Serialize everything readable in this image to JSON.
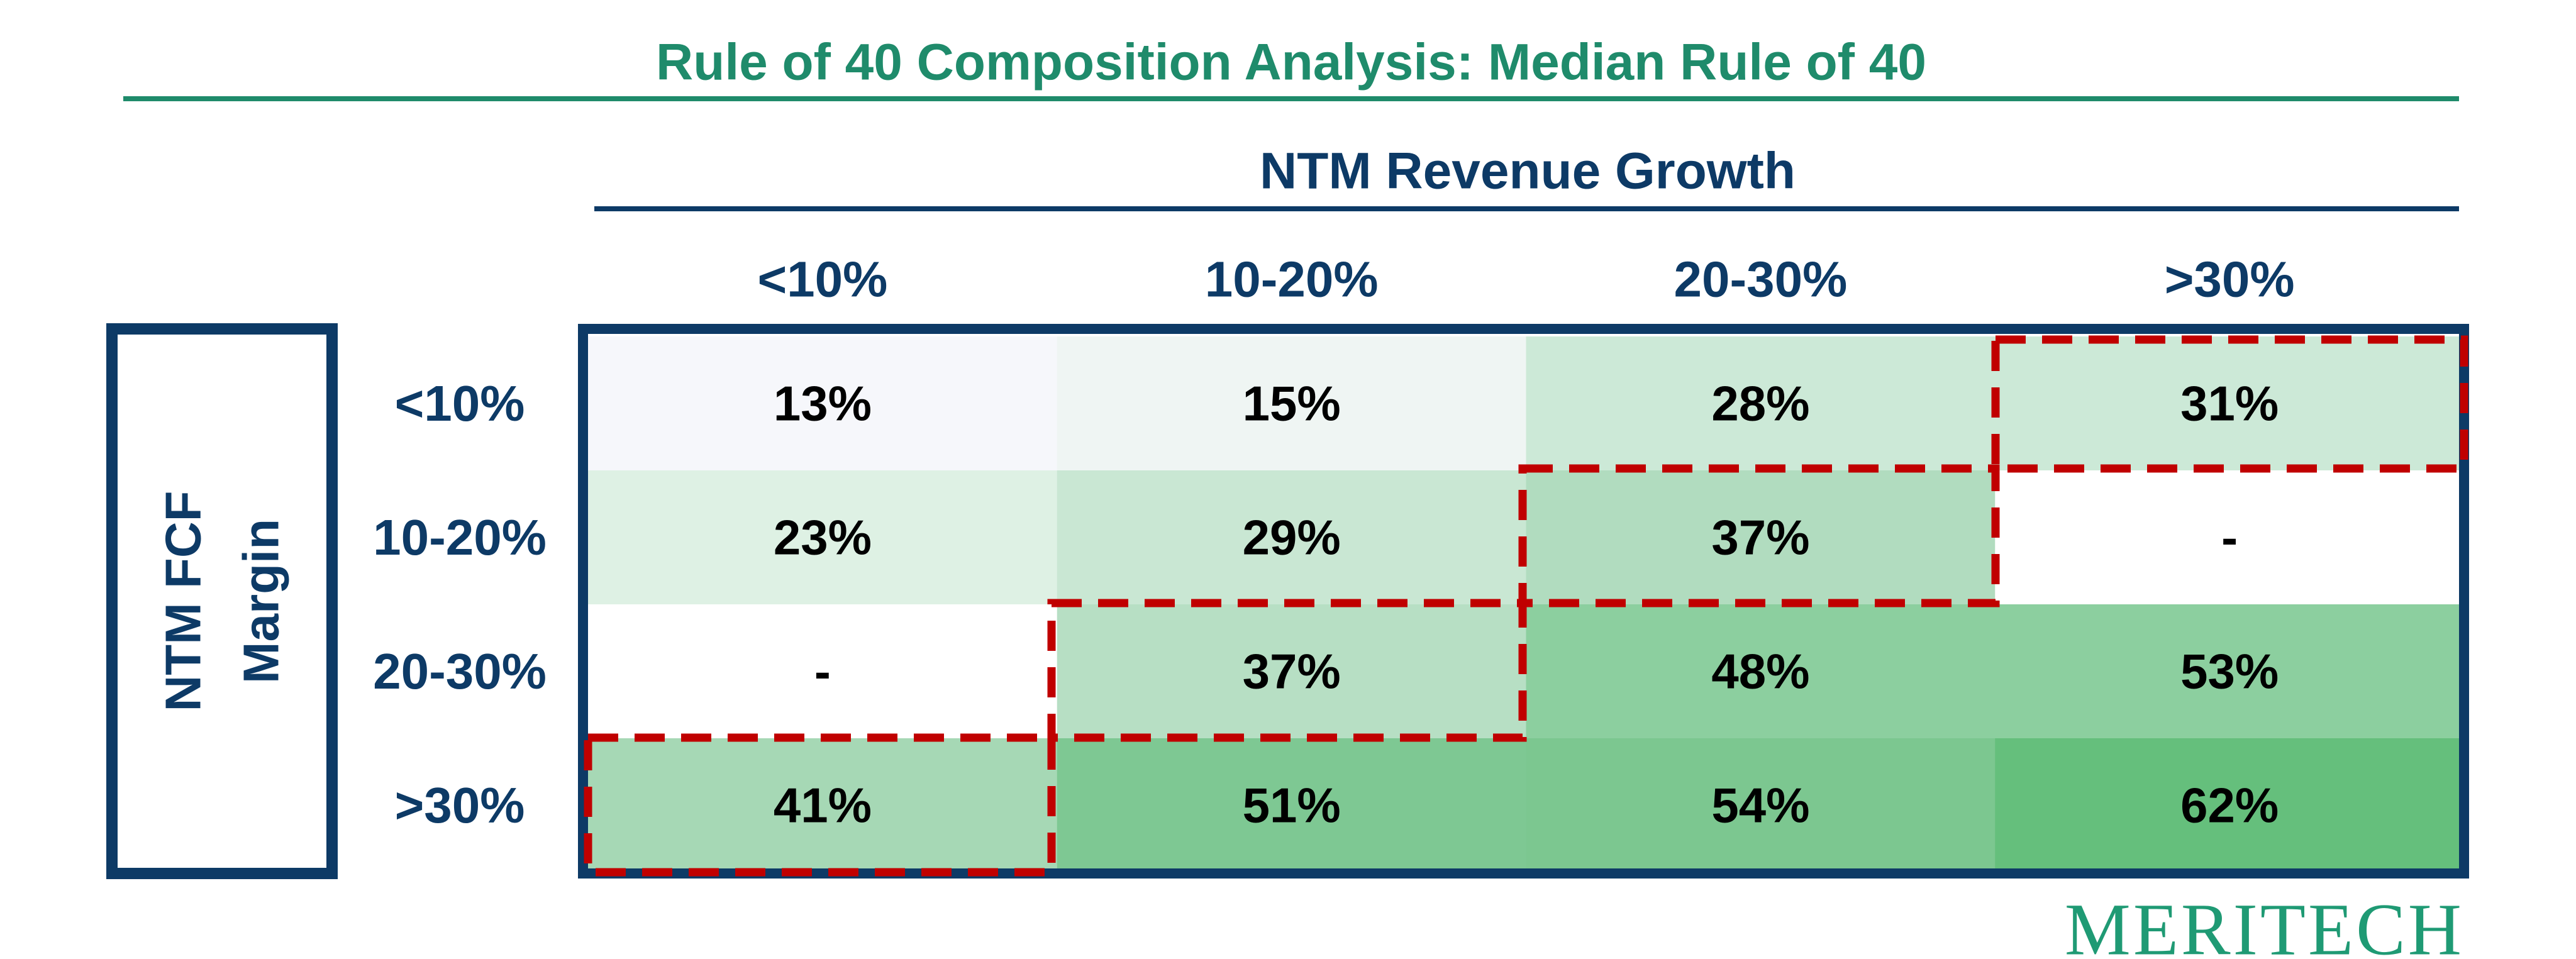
{
  "title": "Rule of 40 Composition Analysis: Median Rule of 40",
  "column_group": "NTM Revenue Growth",
  "row_group": [
    "NTM FCF",
    "Margin"
  ],
  "columns": [
    "<10%",
    "10-20%",
    "20-30%",
    ">30%"
  ],
  "rows": [
    {
      "label": "<10%",
      "cells": [
        "13%",
        "15%",
        "28%",
        "31%"
      ],
      "colors": [
        "#f6f7fb",
        "#eff5f3",
        "#cce9d7",
        "#cce9d7"
      ]
    },
    {
      "label": "10-20%",
      "cells": [
        "23%",
        "29%",
        "37%",
        "-"
      ],
      "colors": [
        "#def1e4",
        "#c9e7d3",
        "#b1dcbf",
        "#ffffff"
      ]
    },
    {
      "label": "20-30%",
      "cells": [
        "-",
        "37%",
        "48%",
        "53%"
      ],
      "colors": [
        "#ffffff",
        "#b7dfc4",
        "#8ccf9f",
        "#8ccf9f"
      ]
    },
    {
      "label": ">30%",
      "cells": [
        "41%",
        "51%",
        "54%",
        "62%"
      ],
      "colors": [
        "#a6d8b5",
        "#7ec893",
        "#7cc790",
        "#65bf7c"
      ]
    }
  ],
  "logo": "MERITECH"
}
